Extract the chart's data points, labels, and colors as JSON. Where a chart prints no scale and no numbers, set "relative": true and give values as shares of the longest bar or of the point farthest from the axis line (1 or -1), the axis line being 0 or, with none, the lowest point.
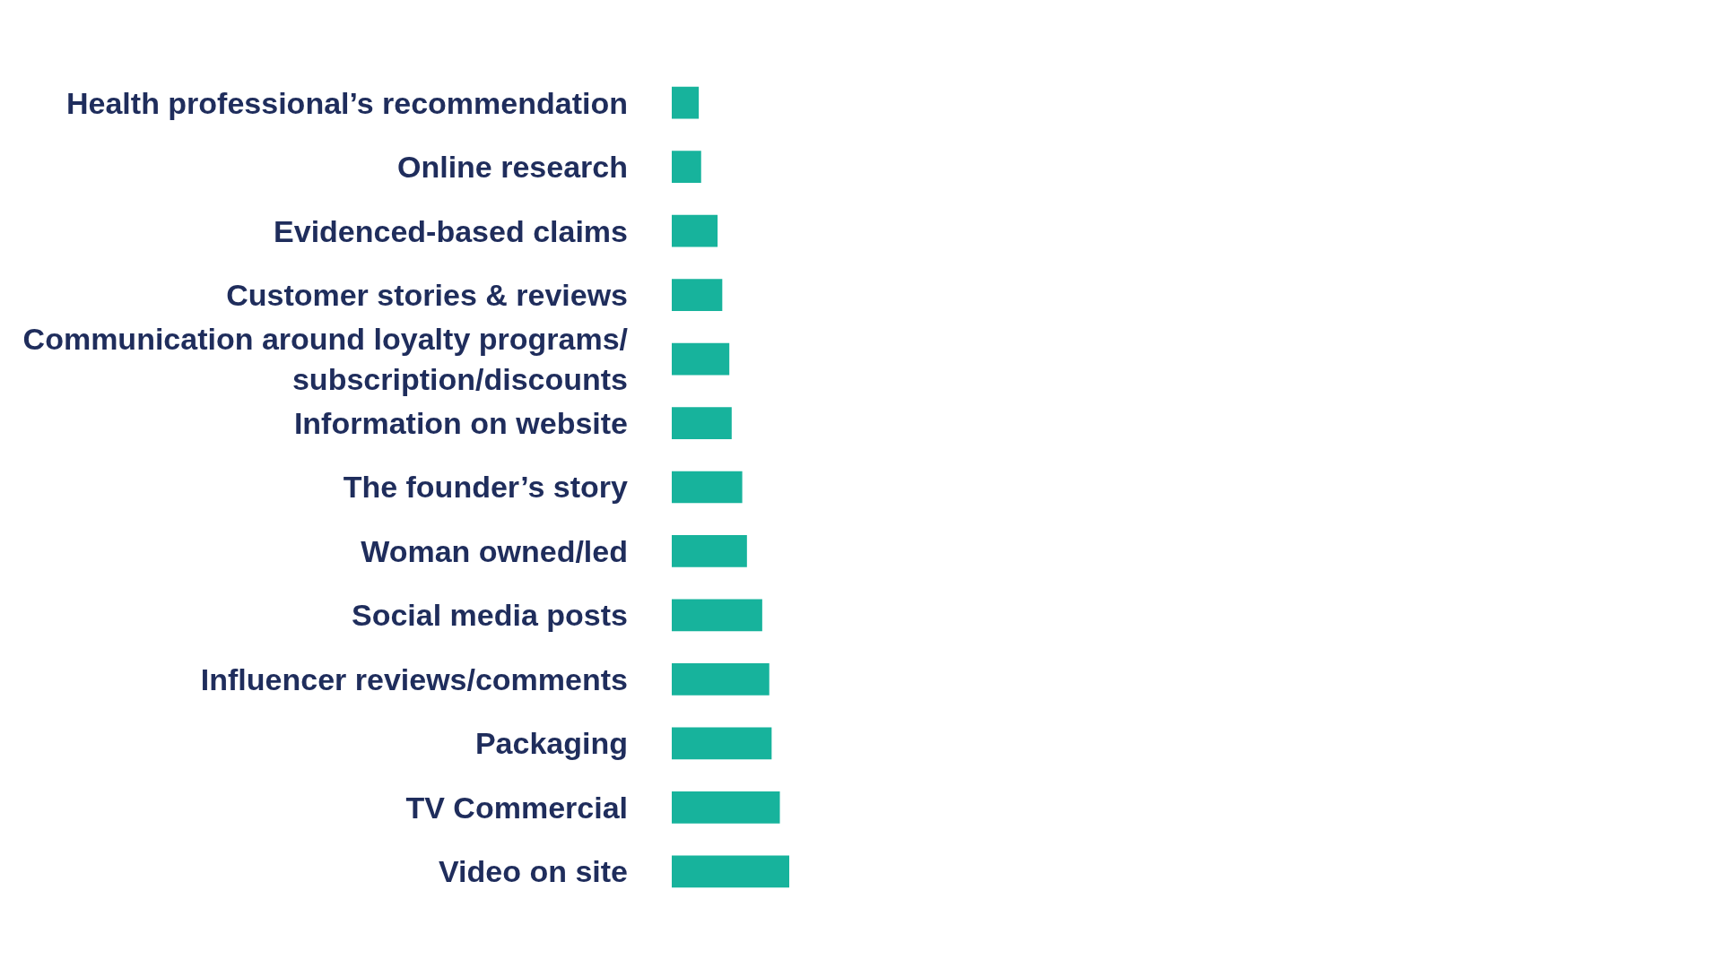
{
  "chart_data": {
    "type": "bar",
    "orientation": "horizontal",
    "relative": true,
    "categories": [
      "Health professional’s recommendation",
      "Online research",
      "Evidenced-based claims",
      "Customer stories & reviews",
      "Communication around loyalty programs/subscription/discounts",
      "Information on website",
      "The founder’s story",
      "Woman owned/led",
      "Social media posts",
      "Influencer reviews/comments",
      "Packaging",
      "TV Commercial",
      "Video on site"
    ],
    "values": [
      0.23,
      0.25,
      0.39,
      0.43,
      0.49,
      0.51,
      0.6,
      0.64,
      0.77,
      0.83,
      0.85,
      0.92,
      1
    ],
    "color": "#17b39c"
  }
}
